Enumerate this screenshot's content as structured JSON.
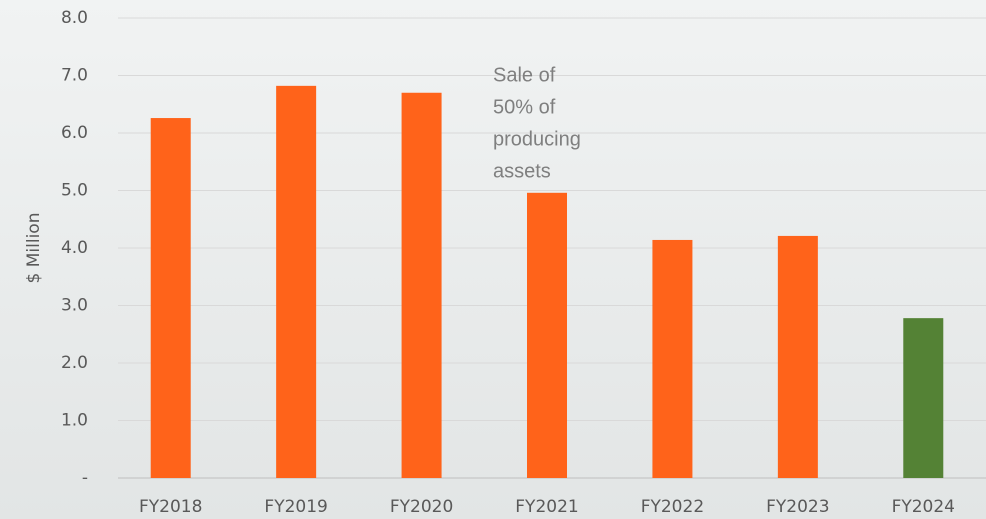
{
  "chart_data": {
    "type": "bar",
    "y_label": "$ Million",
    "categories": [
      "FY2018",
      "FY2019",
      "FY2020",
      "FY2021",
      "FY2022",
      "FY2023",
      "FY2024"
    ],
    "values": [
      6.26,
      6.82,
      6.7,
      4.96,
      4.14,
      4.21,
      2.78
    ],
    "colors": [
      "#ff631a",
      "#ff631a",
      "#ff631a",
      "#ff631a",
      "#ff631a",
      "#ff631a",
      "#548235"
    ],
    "ylim": [
      0,
      8
    ],
    "yticks": [
      {
        "value": 0,
        "label": "-"
      },
      {
        "value": 1,
        "label": "1.0"
      },
      {
        "value": 2,
        "label": "2.0"
      },
      {
        "value": 3,
        "label": "3.0"
      },
      {
        "value": 4,
        "label": "4.0"
      },
      {
        "value": 5,
        "label": "5.0"
      },
      {
        "value": 6,
        "label": "6.0"
      },
      {
        "value": 7,
        "label": "7.0"
      },
      {
        "value": 8,
        "label": "8.0"
      }
    ],
    "grid": true,
    "annotation": [
      "Sale of",
      "50% of",
      "producing",
      "assets"
    ]
  }
}
